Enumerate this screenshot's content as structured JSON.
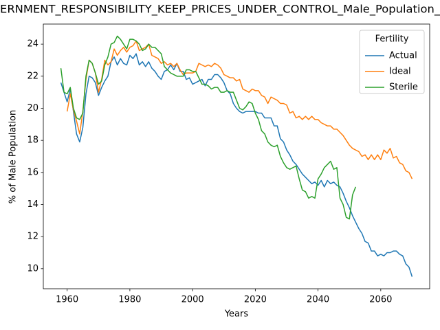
{
  "chart_data": {
    "type": "line",
    "title": "ERNMENT_RESPONSIBILITY_KEEP_PRICES_UNDER_CONTROL_Male_Population_",
    "xlabel": "Years",
    "ylabel": "% of Male Population",
    "legend_title": "Fertility",
    "legend": "upper right",
    "grid": false,
    "xlim": [
      1952.4,
      2075.6
    ],
    "ylim": [
      8.75,
      25.25
    ],
    "xticks": [
      1960,
      1980,
      2000,
      2020,
      2040,
      2060
    ],
    "yticks": [
      10,
      12,
      14,
      16,
      18,
      20,
      22,
      24
    ],
    "x": [
      1958,
      1959,
      1960,
      1961,
      1962,
      1963,
      1964,
      1965,
      1966,
      1967,
      1968,
      1969,
      1970,
      1971,
      1972,
      1973,
      1974,
      1975,
      1976,
      1977,
      1978,
      1979,
      1980,
      1981,
      1982,
      1983,
      1984,
      1985,
      1986,
      1987,
      1988,
      1989,
      1990,
      1991,
      1992,
      1993,
      1994,
      1995,
      1996,
      1997,
      1998,
      1999,
      2000,
      2001,
      2002,
      2003,
      2004,
      2005,
      2006,
      2007,
      2008,
      2009,
      2010,
      2011,
      2012,
      2013,
      2014,
      2015,
      2016,
      2017,
      2018,
      2019,
      2020,
      2021,
      2022,
      2023,
      2024,
      2025,
      2026,
      2027,
      2028,
      2029,
      2030,
      2031,
      2032,
      2033,
      2034,
      2035,
      2036,
      2037,
      2038,
      2039,
      2040,
      2041,
      2042,
      2043,
      2044,
      2045,
      2046,
      2047,
      2048,
      2049,
      2050,
      2051,
      2052,
      2053,
      2054,
      2055,
      2056,
      2057,
      2058,
      2059,
      2060,
      2061,
      2062,
      2063,
      2064,
      2065,
      2066,
      2067,
      2068,
      2069,
      2070
    ],
    "series": [
      {
        "name": "Actual",
        "color": "#1f77b4",
        "values": [
          21.6,
          21.0,
          20.4,
          21.2,
          19.8,
          18.4,
          17.9,
          18.8,
          20.9,
          22.0,
          21.9,
          21.6,
          20.8,
          21.3,
          21.7,
          22.0,
          22.9,
          23.2,
          22.7,
          23.1,
          22.8,
          22.7,
          23.3,
          23.1,
          23.4,
          22.7,
          22.9,
          22.6,
          22.9,
          22.5,
          22.3,
          22.0,
          21.8,
          22.3,
          22.4,
          22.7,
          22.4,
          22.8,
          22.3,
          22.3,
          21.8,
          21.9,
          21.5,
          21.6,
          21.7,
          21.8,
          21.4,
          21.8,
          21.8,
          22.1,
          22.1,
          21.9,
          21.6,
          21.1,
          20.9,
          20.3,
          20.0,
          19.8,
          19.7,
          19.8,
          19.8,
          19.8,
          19.8,
          19.7,
          19.7,
          19.4,
          19.4,
          19.4,
          18.9,
          18.9,
          18.1,
          17.9,
          17.4,
          17.1,
          16.7,
          16.5,
          16.2,
          15.9,
          15.7,
          15.5,
          15.3,
          15.4,
          15.2,
          15.5,
          15.1,
          15.5,
          15.3,
          15.4,
          15.2,
          15.1,
          14.7,
          14.2,
          13.8,
          13.3,
          12.9,
          12.5,
          12.2,
          11.7,
          11.6,
          11.1,
          11.1,
          10.8,
          10.9,
          10.8,
          11.0,
          11.0,
          11.1,
          11.1,
          10.9,
          10.8,
          10.3,
          10.1,
          9.5
        ]
      },
      {
        "name": "Ideal",
        "color": "#ff7f0e",
        "values": [
          null,
          null,
          19.8,
          20.9,
          19.9,
          19.2,
          18.4,
          19.8,
          21.8,
          23.0,
          22.8,
          22.2,
          21.0,
          21.8,
          23.0,
          22.7,
          22.9,
          23.7,
          23.3,
          23.6,
          23.8,
          23.5,
          23.8,
          23.9,
          24.2,
          23.6,
          23.7,
          23.8,
          24.0,
          23.3,
          23.2,
          23.1,
          22.8,
          22.9,
          22.7,
          22.8,
          22.6,
          22.8,
          22.4,
          22.1,
          22.2,
          22.2,
          22.2,
          22.3,
          22.8,
          22.7,
          22.6,
          22.7,
          22.6,
          22.8,
          22.7,
          22.5,
          22.1,
          22.0,
          21.9,
          21.9,
          21.7,
          21.8,
          21.2,
          21.1,
          21.0,
          21.2,
          21.1,
          21.1,
          20.8,
          20.7,
          20.3,
          20.7,
          20.6,
          20.5,
          20.3,
          20.3,
          20.2,
          19.7,
          19.8,
          19.4,
          19.5,
          19.3,
          19.5,
          19.3,
          19.5,
          19.3,
          19.3,
          19.1,
          19.0,
          18.9,
          18.9,
          18.7,
          18.7,
          18.5,
          18.3,
          18.0,
          17.7,
          17.5,
          17.4,
          17.3,
          17.0,
          17.1,
          16.8,
          17.1,
          16.8,
          17.1,
          16.8,
          17.4,
          17.2,
          17.5,
          16.9,
          17.0,
          16.6,
          16.5,
          16.1,
          16.0,
          15.6
        ]
      },
      {
        "name": "Sterile",
        "color": "#2ca02c",
        "values": [
          22.5,
          21.0,
          20.9,
          21.3,
          20.0,
          19.4,
          19.3,
          19.7,
          22.0,
          23.0,
          22.8,
          22.2,
          21.5,
          21.7,
          22.7,
          23.2,
          24.0,
          24.1,
          24.5,
          24.3,
          24.0,
          23.7,
          24.3,
          24.3,
          24.2,
          24.0,
          23.6,
          23.7,
          24.0,
          23.8,
          23.8,
          23.6,
          23.4,
          22.6,
          22.4,
          22.2,
          22.1,
          22.0,
          22.0,
          22.0,
          22.4,
          22.4,
          22.3,
          22.3,
          21.9,
          21.5,
          21.5,
          21.4,
          21.2,
          21.3,
          21.3,
          21.0,
          21.0,
          21.1,
          21.0,
          21.0,
          20.5,
          20.0,
          19.9,
          20.1,
          20.4,
          20.3,
          19.7,
          19.3,
          18.6,
          18.4,
          17.9,
          17.7,
          17.6,
          17.7,
          17.0,
          16.6,
          16.3,
          16.2,
          16.3,
          16.4,
          15.6,
          14.9,
          14.8,
          14.4,
          14.5,
          14.4,
          15.6,
          15.9,
          16.3,
          16.5,
          16.7,
          16.2,
          16.3,
          14.4,
          14.0,
          13.2,
          13.1,
          14.6,
          15.1,
          null,
          null,
          null,
          null,
          null,
          null,
          null,
          null,
          null,
          null,
          null,
          null,
          null,
          null,
          null,
          null,
          null,
          null
        ]
      }
    ]
  }
}
